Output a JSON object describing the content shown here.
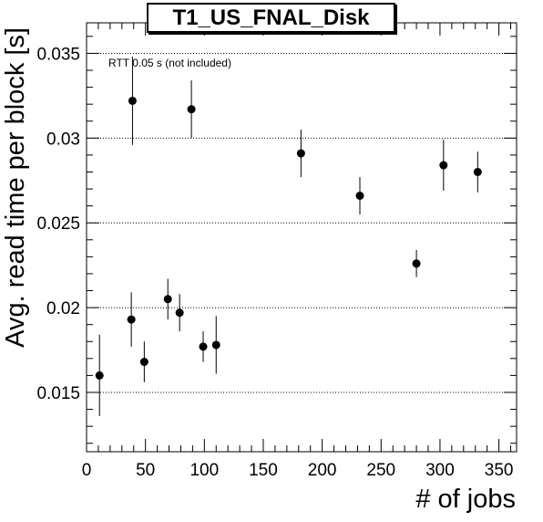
{
  "chart_data": {
    "type": "scatter",
    "title": "T1_US_FNAL_Disk",
    "xlabel": "# of jobs",
    "ylabel": "Avg. read time per block [s]",
    "annotation": "RTT 0.05 s (not included)",
    "xlim": [
      0,
      365
    ],
    "ylim": [
      0.0115,
      0.0368
    ],
    "x_ticks": [
      0,
      50,
      100,
      150,
      200,
      250,
      300,
      350
    ],
    "x_tick_labels": [
      "0",
      "50",
      "100",
      "150",
      "200",
      "250",
      "300",
      "350"
    ],
    "y_ticks": [
      0.015,
      0.02,
      0.025,
      0.03,
      0.035
    ],
    "y_tick_labels": [
      "0.015",
      "0.02",
      "0.025",
      "0.03",
      "0.035"
    ],
    "grid": "horizontal dotted",
    "series": [
      {
        "points": [
          {
            "x": 11,
            "y": 0.016,
            "err": 0.0024
          },
          {
            "x": 38,
            "y": 0.0193,
            "err": 0.0016
          },
          {
            "x": 39,
            "y": 0.0322,
            "err": 0.0026
          },
          {
            "x": 49,
            "y": 0.0168,
            "err": 0.0012
          },
          {
            "x": 69,
            "y": 0.0205,
            "err": 0.0012
          },
          {
            "x": 79,
            "y": 0.0197,
            "err": 0.0011
          },
          {
            "x": 89,
            "y": 0.0317,
            "err": 0.0017
          },
          {
            "x": 99,
            "y": 0.0177,
            "err": 0.0009
          },
          {
            "x": 110,
            "y": 0.0178,
            "err": 0.0017
          },
          {
            "x": 182,
            "y": 0.0291,
            "err": 0.0014
          },
          {
            "x": 232,
            "y": 0.0266,
            "err": 0.0011
          },
          {
            "x": 280,
            "y": 0.0226,
            "err": 0.0008
          },
          {
            "x": 303,
            "y": 0.0284,
            "err": 0.0015
          },
          {
            "x": 332,
            "y": 0.028,
            "err": 0.0012
          }
        ]
      }
    ]
  }
}
